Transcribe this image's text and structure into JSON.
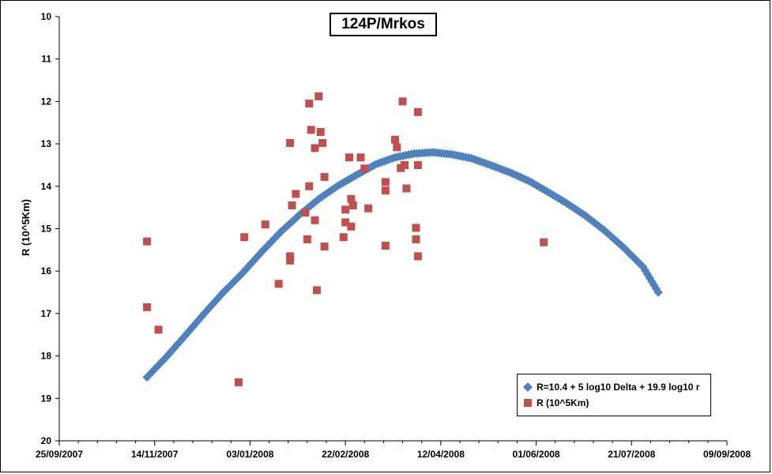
{
  "chart_data": {
    "type": "scatter",
    "title": "124P/Mrkos",
    "xlabel": "",
    "ylabel": "R (10^5Km)",
    "xlim": [
      "2007-09-25",
      "2008-09-09"
    ],
    "ylim": [
      10,
      20
    ],
    "y_inverted": true,
    "x_tick_labels": [
      "25/09/2007",
      "14/11/2007",
      "03/01/2008",
      "22/02/2008",
      "12/04/2008",
      "01/06/2008",
      "21/07/2008",
      "09/09/2008"
    ],
    "y_tick_labels": [
      "10",
      "11",
      "12",
      "13",
      "14",
      "15",
      "16",
      "17",
      "18",
      "19",
      "20"
    ],
    "grid": false,
    "legend_position": "bottom-right",
    "series": [
      {
        "name": "R=10.4 + 5 log10 Delta + 19.9 log10 r",
        "marker": "diamond",
        "color": "#4f81bd",
        "x": [
          "2007-11-10",
          "2007-11-20",
          "2007-11-30",
          "2007-12-10",
          "2007-12-20",
          "2007-12-30",
          "2008-01-09",
          "2008-01-19",
          "2008-01-29",
          "2008-02-08",
          "2008-02-18",
          "2008-02-28",
          "2008-03-09",
          "2008-03-19",
          "2008-03-29",
          "2008-04-08",
          "2008-04-18",
          "2008-04-28",
          "2008-05-08",
          "2008-05-18",
          "2008-05-28",
          "2008-06-07",
          "2008-06-17",
          "2008-06-27",
          "2008-07-07",
          "2008-07-17",
          "2008-07-27",
          "2008-08-04"
        ],
        "y": [
          18.5,
          18.03,
          17.52,
          17.0,
          16.5,
          16.05,
          15.55,
          15.08,
          14.67,
          14.3,
          13.99,
          13.73,
          13.48,
          13.32,
          13.23,
          13.2,
          13.25,
          13.34,
          13.5,
          13.67,
          13.87,
          14.13,
          14.4,
          14.7,
          15.05,
          15.45,
          15.9,
          16.5
        ]
      },
      {
        "name": "R (10^5Km)",
        "marker": "square",
        "color": "#c0504d",
        "x": [
          "2007-11-10",
          "2007-11-10",
          "2007-11-16",
          "2007-12-28",
          "2007-12-31",
          "2008-01-11",
          "2008-01-18",
          "2008-01-24",
          "2008-01-24",
          "2008-01-24",
          "2008-01-25",
          "2008-01-27",
          "2008-02-01",
          "2008-02-02",
          "2008-02-03",
          "2008-02-03",
          "2008-02-04",
          "2008-02-06",
          "2008-02-06",
          "2008-02-07",
          "2008-02-08",
          "2008-02-09",
          "2008-02-10",
          "2008-02-11",
          "2008-02-11",
          "2008-02-21",
          "2008-02-22",
          "2008-02-22",
          "2008-02-24",
          "2008-02-25",
          "2008-02-25",
          "2008-02-26",
          "2008-03-01",
          "2008-03-03",
          "2008-03-05",
          "2008-03-14",
          "2008-03-14",
          "2008-03-14",
          "2008-03-19",
          "2008-03-20",
          "2008-03-22",
          "2008-03-23",
          "2008-03-24",
          "2008-03-25",
          "2008-03-30",
          "2008-03-30",
          "2008-03-31",
          "2008-03-31",
          "2008-03-31",
          "2008-06-05"
        ],
        "y": [
          15.3,
          16.85,
          17.38,
          18.62,
          15.2,
          14.9,
          16.3,
          15.65,
          15.75,
          12.98,
          14.45,
          14.18,
          14.62,
          15.25,
          14.0,
          12.05,
          12.67,
          14.8,
          13.1,
          16.45,
          11.88,
          12.72,
          12.98,
          13.78,
          15.42,
          15.2,
          14.85,
          14.55,
          13.32,
          14.3,
          14.95,
          14.45,
          13.32,
          13.58,
          14.52,
          13.9,
          14.1,
          15.4,
          12.9,
          13.08,
          13.57,
          12.0,
          13.5,
          14.05,
          14.98,
          15.25,
          12.25,
          13.5,
          15.65,
          15.32
        ]
      }
    ]
  }
}
